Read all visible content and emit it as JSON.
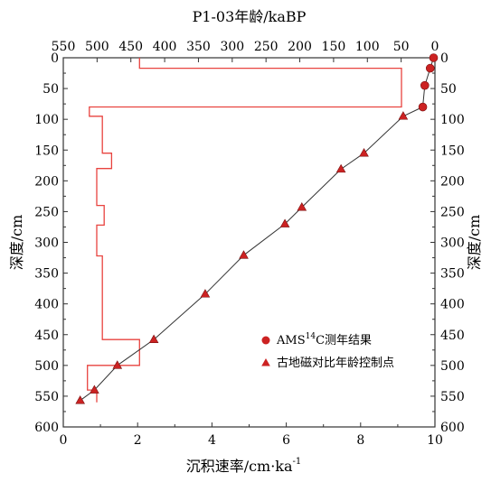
{
  "chart_data": {
    "type": "line",
    "title": "",
    "xlabel_top": "P1-03年龄/kaBP",
    "xlabel_bottom": "沉积速率/cm·ka",
    "xlabel_bottom_superscript": "-1",
    "ylabel_left": "深度/cm",
    "ylabel_right": "深度/cm",
    "ylim": [
      600,
      0
    ],
    "xlim_bottom": [
      0,
      10
    ],
    "xlim_top": [
      550,
      0
    ],
    "y_ticks": [
      "0",
      "50",
      "100",
      "150",
      "200",
      "250",
      "300",
      "350",
      "400",
      "450",
      "500",
      "550",
      "600"
    ],
    "x_bottom_ticks": [
      "0",
      "2",
      "4",
      "6",
      "8",
      "10"
    ],
    "x_top_ticks": [
      "550",
      "500",
      "450",
      "400",
      "350",
      "300",
      "250",
      "200",
      "150",
      "100",
      "50",
      "0"
    ],
    "grid": false,
    "legend_position": "bottom-right",
    "legend": [
      {
        "label": "AMS",
        "label_sup": "14",
        "label_tail": "C测年结果",
        "marker": "circle",
        "color": "#cc2222"
      },
      {
        "label": "古地磁对比年龄控制点",
        "marker": "triangle",
        "color": "#cc2222"
      }
    ],
    "series": [
      {
        "role": "sedimentation-rate",
        "axis": "bottom",
        "color": "#e8433f",
        "points": [
          [
            2.05,
            0
          ],
          [
            2.05,
            17
          ],
          [
            9.1,
            17
          ],
          [
            9.1,
            80
          ],
          [
            0.7,
            80
          ],
          [
            0.7,
            95
          ],
          [
            1.05,
            95
          ],
          [
            1.05,
            155
          ],
          [
            1.3,
            155
          ],
          [
            1.3,
            180
          ],
          [
            0.9,
            180
          ],
          [
            0.9,
            240
          ],
          [
            1.1,
            240
          ],
          [
            1.1,
            272
          ],
          [
            0.9,
            272
          ],
          [
            0.9,
            322
          ],
          [
            1.05,
            322
          ],
          [
            1.05,
            458
          ],
          [
            2.05,
            458
          ],
          [
            2.05,
            500
          ],
          [
            0.65,
            500
          ],
          [
            0.65,
            540
          ],
          [
            0.9,
            540
          ],
          [
            0.9,
            560
          ]
        ]
      },
      {
        "role": "age-depth",
        "axis": "top",
        "color": "#333333",
        "points": [
          [
            2,
            0
          ],
          [
            7,
            17
          ],
          [
            15,
            45
          ],
          [
            18,
            80
          ],
          [
            47,
            95
          ],
          [
            105,
            155
          ],
          [
            139,
            181
          ],
          [
            197,
            243
          ],
          [
            222,
            270
          ],
          [
            283,
            321
          ],
          [
            340,
            384
          ],
          [
            416,
            458
          ],
          [
            470,
            500
          ],
          [
            504,
            540
          ],
          [
            525,
            557
          ]
        ]
      }
    ],
    "ams_points": [
      [
        2,
        0
      ],
      [
        7,
        17
      ],
      [
        15,
        45
      ],
      [
        18,
        80
      ]
    ],
    "paleomag_points": [
      [
        47,
        95
      ],
      [
        105,
        155
      ],
      [
        139,
        181
      ],
      [
        197,
        243
      ],
      [
        222,
        270
      ],
      [
        283,
        321
      ],
      [
        340,
        384
      ],
      [
        416,
        458
      ],
      [
        470,
        500
      ],
      [
        504,
        540
      ],
      [
        525,
        557
      ]
    ]
  }
}
